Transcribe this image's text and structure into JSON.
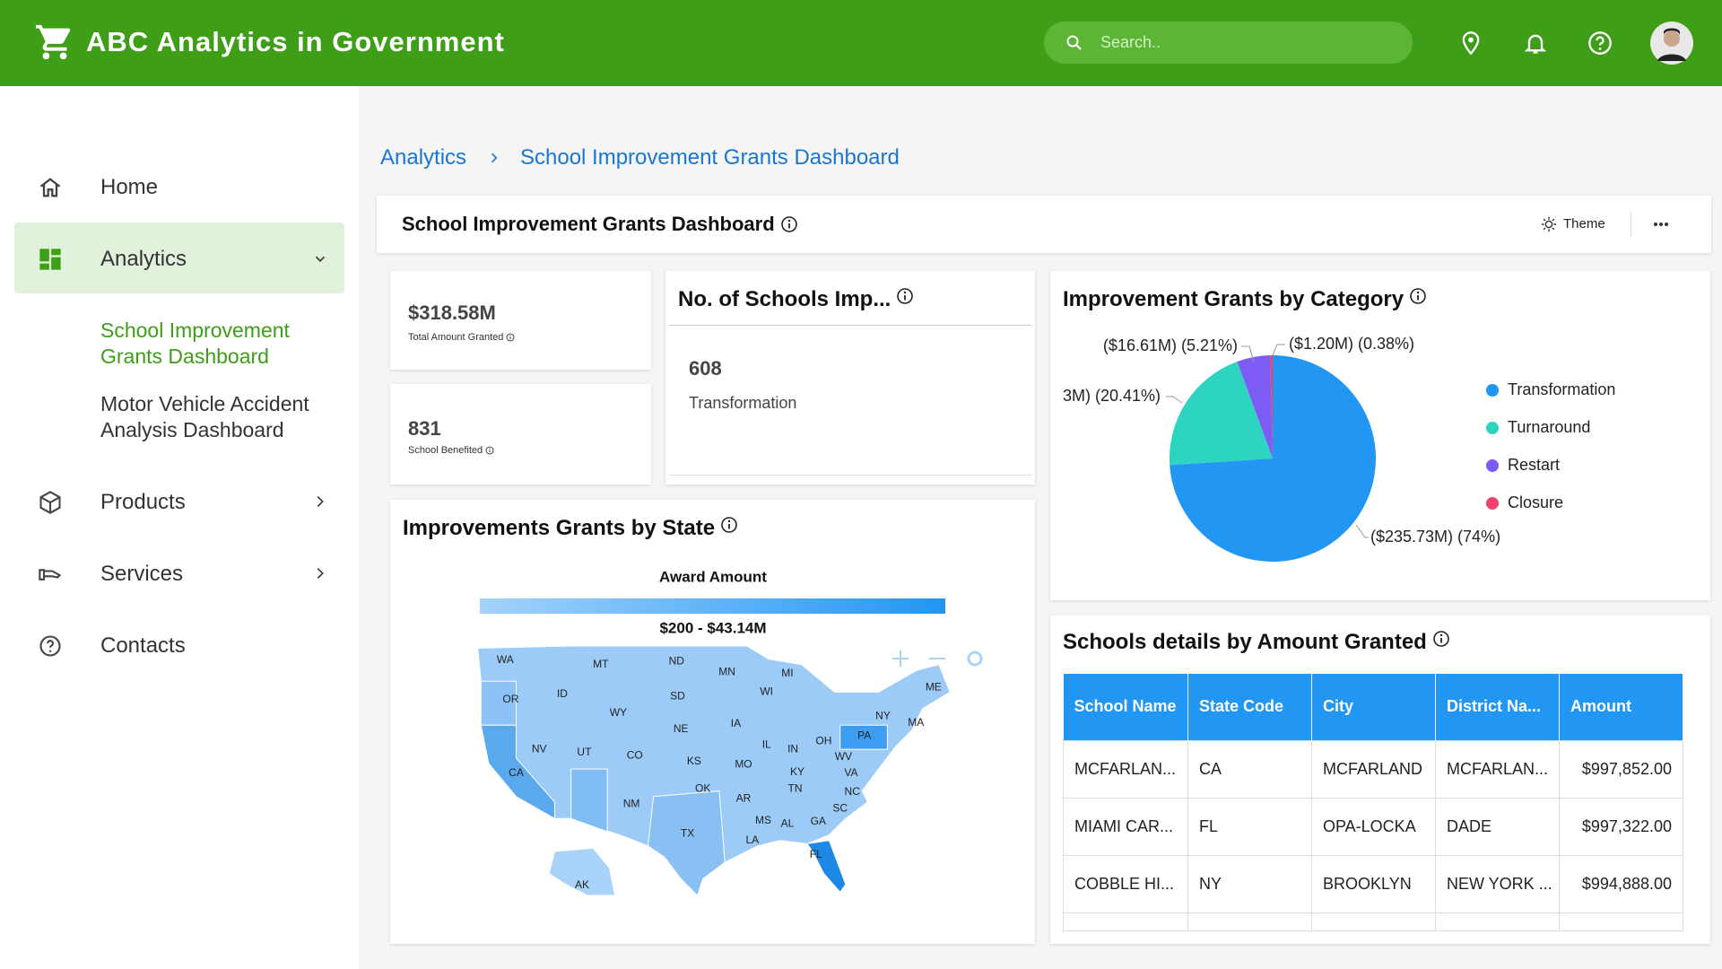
{
  "header": {
    "title": "ABC Analytics in Government",
    "search_placeholder": "Search.."
  },
  "sidebar": {
    "items": [
      "Home",
      "Analytics",
      "Products",
      "Services",
      "Contacts"
    ],
    "sub_items": [
      "School Improvement Grants Dashboard",
      "Motor Vehicle Accident Analysis Dashboard"
    ]
  },
  "breadcrumb": [
    "Analytics",
    "School Improvement Grants Dashboard"
  ],
  "dashboard": {
    "title": "School Improvement Grants Dashboard",
    "theme_label": "Theme"
  },
  "kpis": [
    {
      "value": "$318.58M",
      "label": "Total Amount Granted"
    },
    {
      "value": "831",
      "label": "School Benefited"
    }
  ],
  "schools_card": {
    "title": "No. of Schools Imp...",
    "value": "608",
    "label": "Transformation"
  },
  "pie_chart": {
    "type": "pie",
    "title": "Improvement Grants by Category",
    "categories": [
      "Transformation",
      "Turnaround",
      "Restart",
      "Closure"
    ],
    "values": [
      74,
      20.41,
      5.21,
      0.38
    ],
    "value_labels": [
      "($235.73M) (74%)",
      "3M) (20.41%)",
      "($16.61M) (5.21%)",
      "($1.20M) (0.38%)"
    ],
    "colors": [
      "#2196f3",
      "#2dd4bf",
      "#7c5cf5",
      "#f0436b"
    ]
  },
  "map": {
    "title": "Improvements Grants by State",
    "legend_title": "Award Amount",
    "range_label": "$200 - $43.14M",
    "states": [
      "WA",
      "MT",
      "ND",
      "MN",
      "MI",
      "ME",
      "OR",
      "ID",
      "SD",
      "WI",
      "WY",
      "NY",
      "MA",
      "IA",
      "NE",
      "PA",
      "NV",
      "UT",
      "CO",
      "IL",
      "IN",
      "OH",
      "KS",
      "MO",
      "WV",
      "CA",
      "KY",
      "VA",
      "OK",
      "TN",
      "NC",
      "AR",
      "NM",
      "SC",
      "MS",
      "AL",
      "GA",
      "TX",
      "LA",
      "FL",
      "AK"
    ]
  },
  "table": {
    "title": "Schools details by Amount Granted",
    "columns": [
      "School Name",
      "State Code",
      "City",
      "District Na...",
      "Amount"
    ],
    "rows": [
      [
        "MCFARLAN...",
        "CA",
        "MCFARLAND",
        "MCFARLAN...",
        "$997,852.00"
      ],
      [
        "MIAMI CAR...",
        "FL",
        "OPA-LOCKA",
        "DADE",
        "$997,322.00"
      ],
      [
        "COBBLE HI...",
        "NY",
        "BROOKLYN",
        "NEW YORK ...",
        "$994,888.00"
      ]
    ]
  }
}
